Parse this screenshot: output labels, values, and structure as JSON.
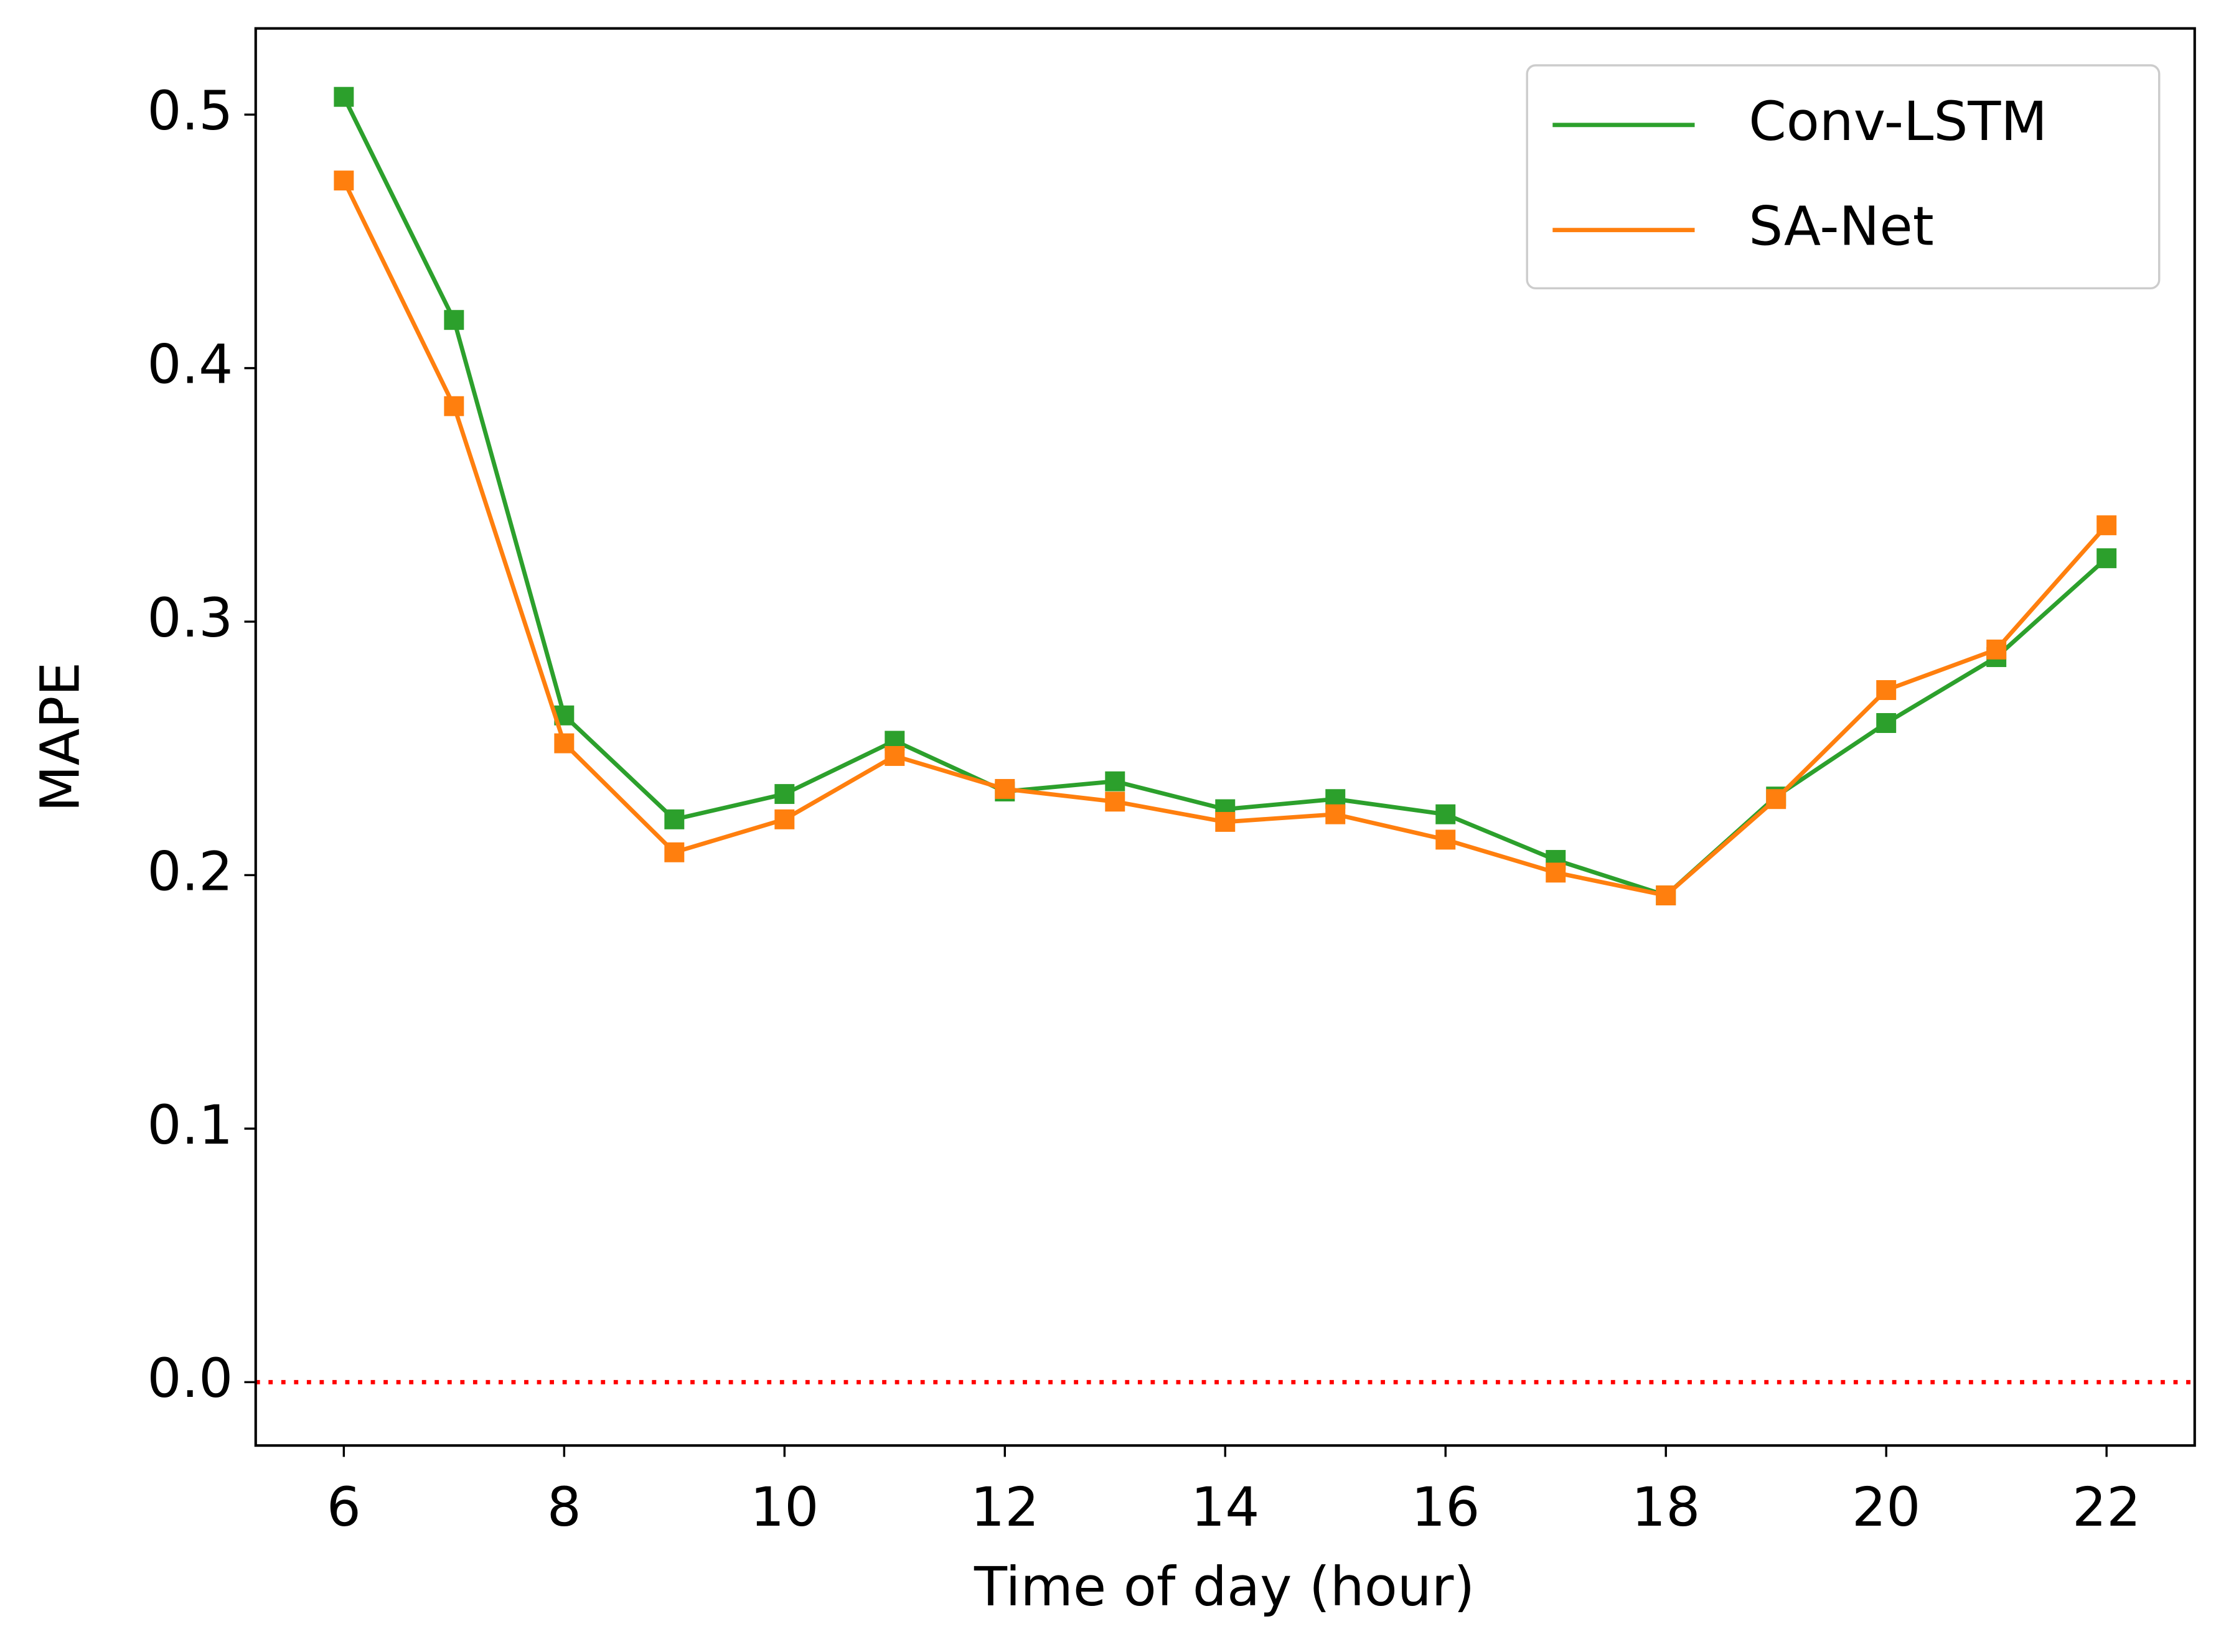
{
  "chart_data": {
    "type": "line",
    "xlabel": "Time of day (hour)",
    "ylabel": "MAPE",
    "x": [
      6,
      7,
      8,
      9,
      10,
      11,
      12,
      13,
      14,
      15,
      16,
      17,
      18,
      19,
      20,
      21,
      22
    ],
    "series": [
      {
        "name": "Conv-LSTM",
        "color": "#2ca02c",
        "values": [
          0.507,
          0.419,
          0.263,
          0.222,
          0.232,
          0.253,
          0.233,
          0.237,
          0.226,
          0.23,
          0.224,
          0.206,
          0.192,
          0.231,
          0.26,
          0.286,
          0.325
        ]
      },
      {
        "name": "SA-Net",
        "color": "#ff7f0e",
        "values": [
          0.474,
          0.385,
          0.252,
          0.209,
          0.222,
          0.247,
          0.234,
          0.229,
          0.221,
          0.224,
          0.214,
          0.201,
          0.192,
          0.23,
          0.273,
          0.289,
          0.338
        ]
      }
    ],
    "xlim": [
      5.2,
      22.8
    ],
    "xticks": [
      6,
      8,
      10,
      12,
      14,
      16,
      18,
      20,
      22
    ],
    "ylim": [
      -0.025,
      0.534
    ],
    "yticks": [
      {
        "value": 0,
        "label": "0.0"
      },
      0.1,
      0.2,
      0.3,
      0.4,
      0.5
    ],
    "hline": {
      "value": 0,
      "color": "#ff0000"
    },
    "legend": "upper right",
    "marker": "square"
  }
}
